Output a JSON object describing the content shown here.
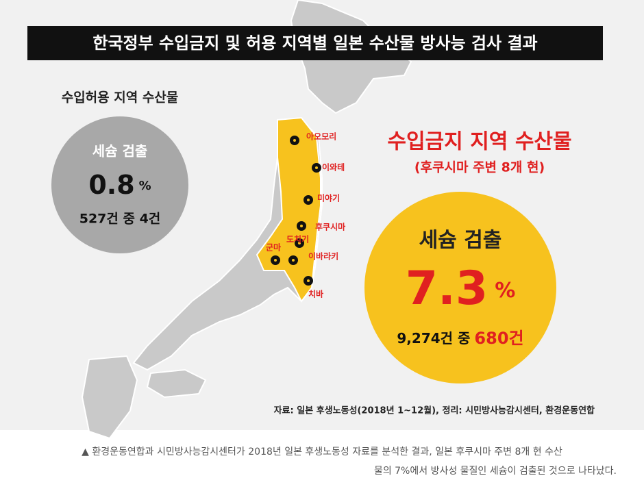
{
  "title": "한국정부 수입금지 및 허용 지역별 일본 수산물 방사능 검사 결과",
  "permitted": {
    "heading": "수입허용 지역 수산물",
    "label": "세슘 검출",
    "rate": "0.8",
    "unit": "%",
    "count": "527건 중 4건"
  },
  "banned": {
    "heading": "수입금지 지역 수산물",
    "subheading": "(후쿠시마 주변 8개 현)",
    "label": "세슘 검출",
    "rate": "7.3",
    "unit": "%",
    "count_total": "9,274건 중",
    "count_detected": "680건"
  },
  "prefectures": [
    "아오모리",
    "이와테",
    "미야기",
    "후쿠시마",
    "도치기",
    "군마",
    "이바라키",
    "치바"
  ],
  "source": "자료: 일본 후생노동성(2018년 1~12월), 정리: 시민방사능감시센터, 환경운동연합",
  "caption": [
    "▲ 환경운동연합과 시민방사능감시센터가 2018년 일본 후생노동성 자료를 분석한 결과, 일본 후쿠시마 주변 8개 현 수산",
    "물의 7%에서 방사성 물질인 세슘이 검출된 것으로 나타났다."
  ]
}
